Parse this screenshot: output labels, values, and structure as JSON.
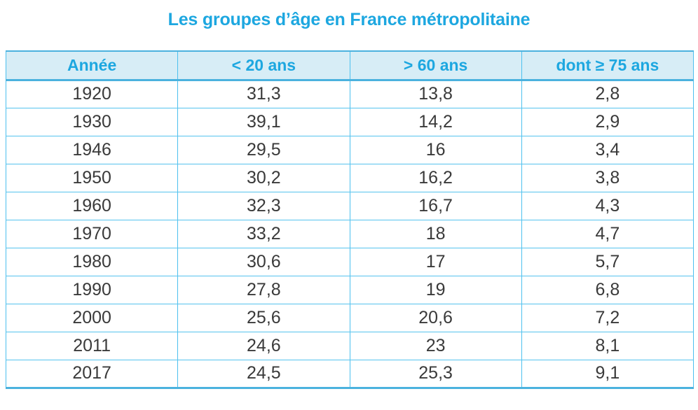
{
  "title": "Les groupes d’âge en France métropolitaine",
  "colors": {
    "accent": "#1da7e0",
    "header_bg": "#d7edf6",
    "border_v": "#4cc0ef",
    "border_h": "#55c3ee",
    "border_strong": "#4bb2de",
    "body_text": "#3a3a3a",
    "page_bg": "#ffffff"
  },
  "table": {
    "headers": [
      "Année",
      "< 20 ans",
      "> 60 ans",
      "dont ≥ 75 ans"
    ],
    "rows": [
      [
        "1920",
        "31,3",
        "13,8",
        "2,8"
      ],
      [
        "1930",
        "39,1",
        "14,2",
        "2,9"
      ],
      [
        "1946",
        "29,5",
        "16",
        "3,4"
      ],
      [
        "1950",
        "30,2",
        "16,2",
        "3,8"
      ],
      [
        "1960",
        "32,3",
        "16,7",
        "4,3"
      ],
      [
        "1970",
        "33,2",
        "18",
        "4,7"
      ],
      [
        "1980",
        "30,6",
        "17",
        "5,7"
      ],
      [
        "1990",
        "27,8",
        "19",
        "6,8"
      ],
      [
        "2000",
        "25,6",
        "20,6",
        "7,2"
      ],
      [
        "2011",
        "24,6",
        "23",
        "8,1"
      ],
      [
        "2017",
        "24,5",
        "25,3",
        "9,1"
      ]
    ]
  },
  "chart_data": {
    "type": "table",
    "title": "Les groupes d’âge en France métropolitaine",
    "columns": [
      "Année",
      "< 20 ans",
      "> 60 ans",
      "dont ≥ 75 ans"
    ],
    "unit_hint": "percentages (French comma decimals)",
    "rows": [
      [
        1920,
        31.3,
        13.8,
        2.8
      ],
      [
        1930,
        39.1,
        14.2,
        2.9
      ],
      [
        1946,
        29.5,
        16,
        3.4
      ],
      [
        1950,
        30.2,
        16.2,
        3.8
      ],
      [
        1960,
        32.3,
        16.7,
        4.3
      ],
      [
        1970,
        33.2,
        18,
        4.7
      ],
      [
        1980,
        30.6,
        17,
        5.7
      ],
      [
        1990,
        27.8,
        19,
        6.8
      ],
      [
        2000,
        25.6,
        20.6,
        7.2
      ],
      [
        2011,
        24.6,
        23,
        8.1
      ],
      [
        2017,
        24.5,
        25.3,
        9.1
      ]
    ]
  }
}
